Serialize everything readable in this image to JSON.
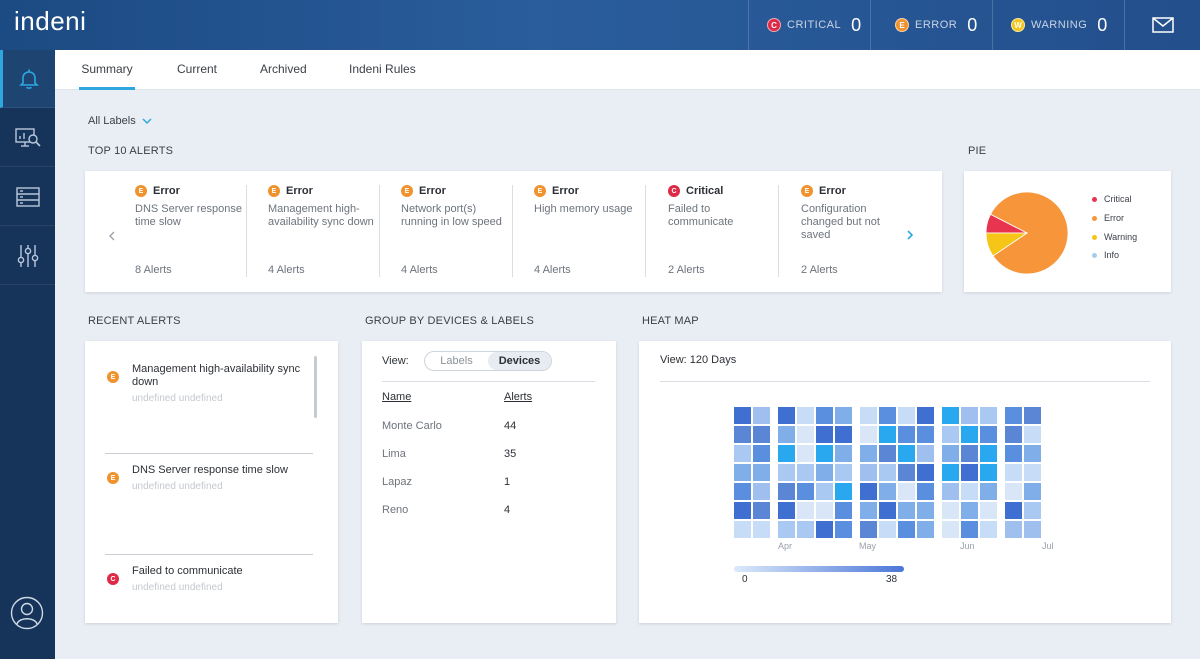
{
  "app": {
    "logo": "indeni"
  },
  "header": {
    "stats": [
      {
        "letter": "C",
        "label": "CRITICAL",
        "count": "0",
        "color": "#dd2a47"
      },
      {
        "letter": "E",
        "label": "ERROR",
        "count": "0",
        "color": "#f0922d"
      },
      {
        "letter": "W",
        "label": "WARNING",
        "count": "0",
        "color": "#f3c61a"
      }
    ]
  },
  "sidebar": {
    "items": [
      {
        "icon": "bell-icon",
        "active": true
      },
      {
        "icon": "monitor-search-icon",
        "active": false
      },
      {
        "icon": "server-list-icon",
        "active": false
      },
      {
        "icon": "sliders-icon",
        "active": false
      }
    ],
    "user_icon": "user-avatar-icon"
  },
  "tabs": [
    "Summary",
    "Current",
    "Archived",
    "Indeni Rules"
  ],
  "filter": {
    "label": "All Labels"
  },
  "top_alerts": {
    "title": "TOP 10 ALERTS",
    "items": [
      {
        "severity": "Error",
        "letter": "E",
        "description": "DNS Server response time slow",
        "count": "8 Alerts"
      },
      {
        "severity": "Error",
        "letter": "E",
        "description": "Management high-availability sync down",
        "count": "4 Alerts"
      },
      {
        "severity": "Error",
        "letter": "E",
        "description": "Network port(s) running in low speed",
        "count": "4 Alerts"
      },
      {
        "severity": "Error",
        "letter": "E",
        "description": "High memory usage",
        "count": "4 Alerts"
      },
      {
        "severity": "Critical",
        "letter": "C",
        "description": "Failed to communicate",
        "count": "2 Alerts"
      },
      {
        "severity": "Error",
        "letter": "E",
        "description": "Configuration changed but not saved",
        "count": "2 Alerts"
      }
    ]
  },
  "pie": {
    "title": "PIE",
    "legend": [
      {
        "label": "Critical",
        "color": "#e8344e"
      },
      {
        "label": "Error",
        "color": "#f7953a"
      },
      {
        "label": "Warning",
        "color": "#f5c518"
      },
      {
        "label": "Info",
        "color": "#a8cdea"
      }
    ]
  },
  "chart_data": {
    "type": "pie",
    "slices": [
      {
        "label": "Critical",
        "value": 2
      },
      {
        "label": "Error",
        "value": 22
      },
      {
        "label": "Warning",
        "value": 2.5
      },
      {
        "label": "Info",
        "value": 0
      }
    ]
  },
  "recent_alerts": {
    "title": "RECENT ALERTS",
    "items": [
      {
        "letter": "E",
        "title": "Management high-availability sync down",
        "subtitle": "undefined undefined"
      },
      {
        "letter": "E",
        "title": "DNS Server response time slow",
        "subtitle": "undefined undefined"
      },
      {
        "letter": "C",
        "title": "Failed to communicate",
        "subtitle": "undefined undefined"
      }
    ]
  },
  "group_by": {
    "title": "GROUP BY DEVICES & LABELS",
    "view_label": "View:",
    "toggle": [
      "Labels",
      "Devices"
    ],
    "selected": "Devices",
    "columns": [
      "Name",
      "Alerts"
    ],
    "rows": [
      {
        "name": "Monte Carlo",
        "alerts": "44"
      },
      {
        "name": "Lima",
        "alerts": "35"
      },
      {
        "name": "Lapaz",
        "alerts": "1"
      },
      {
        "name": "Reno",
        "alerts": "4"
      }
    ]
  },
  "heat_map": {
    "title": "HEAT MAP",
    "view_label": "View: 120 Days",
    "months": [
      "Apr",
      "May",
      "Jun",
      "Jul"
    ],
    "scale_min": "0",
    "scale_max": "38"
  }
}
